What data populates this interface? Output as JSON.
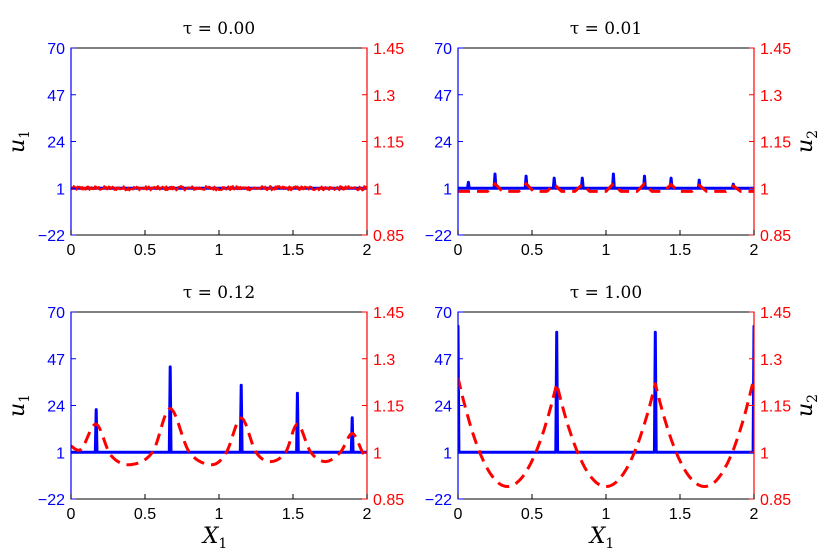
{
  "chart_data": [
    {
      "type": "line",
      "title": "τ = 0.00",
      "ylabel_left": "u1",
      "ylabel_right": "",
      "xlabel": "",
      "xlim": [
        0,
        2
      ],
      "ylim_left": [
        -22,
        70
      ],
      "ylim_right": [
        0.85,
        1.45
      ],
      "x_ticks": [
        "0",
        "0.5",
        "1",
        "1.5",
        "2"
      ],
      "y_ticks_left": [
        "−22",
        "1",
        "24",
        "47",
        "70"
      ],
      "y_ticks_right": [
        "0.85",
        "1",
        "1.15",
        "1.3",
        "1.45"
      ],
      "series": [
        {
          "axis": "left",
          "color": "#0000ff",
          "style": "solid",
          "baseline": 1,
          "peaks": []
        },
        {
          "axis": "right",
          "color": "#ff0000",
          "style": "noise",
          "baseline": 1,
          "noise_band": [
            0.993,
            1.007
          ]
        }
      ]
    },
    {
      "type": "line",
      "title": "τ = 0.01",
      "ylabel_left": "",
      "ylabel_right": "u2",
      "xlabel": "",
      "xlim": [
        0,
        2
      ],
      "ylim_left": [
        -22,
        70
      ],
      "ylim_right": [
        0.85,
        1.45
      ],
      "x_ticks": [
        "0",
        "0.5",
        "1",
        "1.5",
        "2"
      ],
      "y_ticks_left": [
        "−22",
        "1",
        "24",
        "47",
        "70"
      ],
      "y_ticks_right": [
        "0.85",
        "1",
        "1.15",
        "1.3",
        "1.45"
      ],
      "series": [
        {
          "axis": "left",
          "color": "#0000ff",
          "style": "solid",
          "baseline": 1,
          "peaks": [
            [
              0.07,
              4
            ],
            [
              0.25,
              8
            ],
            [
              0.46,
              7
            ],
            [
              0.65,
              6
            ],
            [
              0.84,
              6
            ],
            [
              1.05,
              8
            ],
            [
              1.26,
              7
            ],
            [
              1.44,
              6
            ],
            [
              1.63,
              5
            ],
            [
              1.86,
              3
            ]
          ]
        },
        {
          "axis": "right",
          "color": "#ff0000",
          "style": "dashed",
          "baseline": 0.99,
          "peaks": [
            [
              0.25,
              1.015
            ],
            [
              0.46,
              1.015
            ],
            [
              0.65,
              1.012
            ],
            [
              0.84,
              1.012
            ],
            [
              1.05,
              1.015
            ],
            [
              1.26,
              1.015
            ],
            [
              1.44,
              1.012
            ],
            [
              1.63,
              1.01
            ],
            [
              1.86,
              1.008
            ]
          ]
        }
      ]
    },
    {
      "type": "line",
      "title": "τ = 0.12",
      "ylabel_left": "u1",
      "ylabel_right": "",
      "xlabel": "X1",
      "xlim": [
        0,
        2
      ],
      "ylim_left": [
        -22,
        70
      ],
      "ylim_right": [
        0.85,
        1.45
      ],
      "x_ticks": [
        "0",
        "0.5",
        "1",
        "1.5",
        "2"
      ],
      "y_ticks_left": [
        "−22",
        "1",
        "24",
        "47",
        "70"
      ],
      "y_ticks_right": [
        "0.85",
        "1",
        "1.15",
        "1.3",
        "1.45"
      ],
      "series": [
        {
          "axis": "left",
          "color": "#0000ff",
          "style": "solid",
          "baseline": 1,
          "peaks": [
            [
              0.17,
              22
            ],
            [
              0.67,
              43
            ],
            [
              1.15,
              34
            ],
            [
              1.53,
              30
            ],
            [
              1.9,
              18
            ]
          ]
        },
        {
          "axis": "right",
          "color": "#ff0000",
          "style": "dashed",
          "points": [
            [
              0,
              1.02
            ],
            [
              0.07,
              1.01
            ],
            [
              0.17,
              1.09
            ],
            [
              0.27,
              0.99
            ],
            [
              0.4,
              0.96
            ],
            [
              0.55,
              1.0
            ],
            [
              0.67,
              1.14
            ],
            [
              0.8,
              1.0
            ],
            [
              0.95,
              0.96
            ],
            [
              1.05,
              1.0
            ],
            [
              1.15,
              1.11
            ],
            [
              1.25,
              1.0
            ],
            [
              1.35,
              0.97
            ],
            [
              1.45,
              1.0
            ],
            [
              1.53,
              1.09
            ],
            [
              1.62,
              1.0
            ],
            [
              1.72,
              0.97
            ],
            [
              1.82,
              1.0
            ],
            [
              1.9,
              1.06
            ],
            [
              1.97,
              1.0
            ],
            [
              2,
              0.99
            ]
          ]
        }
      ]
    },
    {
      "type": "line",
      "title": "τ = 1.00",
      "ylabel_left": "",
      "ylabel_right": "u2",
      "xlabel": "X1",
      "xlim": [
        0,
        2
      ],
      "ylim_left": [
        -22,
        70
      ],
      "ylim_right": [
        0.85,
        1.45
      ],
      "x_ticks": [
        "0",
        "0.5",
        "1",
        "1.5",
        "2"
      ],
      "y_ticks_left": [
        "−22",
        "1",
        "24",
        "47",
        "70"
      ],
      "y_ticks_right": [
        "0.85",
        "1",
        "1.15",
        "1.3",
        "1.45"
      ],
      "series": [
        {
          "axis": "left",
          "color": "#0000ff",
          "style": "solid",
          "baseline": 1,
          "peaks": [
            [
              0,
              63
            ],
            [
              0.667,
              60
            ],
            [
              1.333,
              60
            ],
            [
              2,
              63
            ]
          ]
        },
        {
          "axis": "right",
          "color": "#ff0000",
          "style": "dashed",
          "arches": [
            [
              0,
              1.24
            ],
            [
              0.667,
              1.22
            ],
            [
              1.333,
              1.22
            ],
            [
              2,
              1.24
            ]
          ],
          "minimum": 0.89
        }
      ]
    }
  ]
}
